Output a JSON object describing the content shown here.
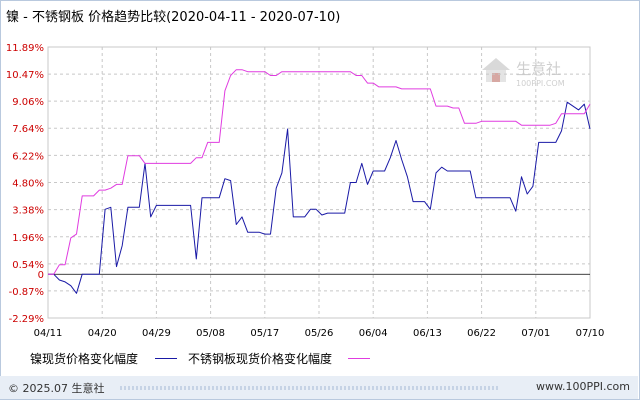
{
  "title": "镍 - 不锈钢板 价格趋势比较(2020-04-11 - 2020-07-10)",
  "watermark": {
    "text": "生意社",
    "url": "100PPI.COM"
  },
  "footer": {
    "left": "© 2025.07 生意社",
    "right": "www.100PPI.com"
  },
  "colors": {
    "nickel": "#1a1aa6",
    "stainless": "#e03ce0",
    "grid": "#c8c8c8",
    "axis": "#000000"
  },
  "chart_data": {
    "type": "line",
    "title": "镍 - 不锈钢板 价格趋势比较(2020-04-11 - 2020-07-10)",
    "xlabel": "",
    "ylabel": "",
    "x_ticks": [
      "04/11",
      "04/20",
      "04/29",
      "05/08",
      "05/17",
      "05/26",
      "06/04",
      "06/13",
      "06/22",
      "07/01",
      "07/10"
    ],
    "y_ticks": [
      "11.89%",
      "10.47%",
      "9.06%",
      "7.64%",
      "6.22%",
      "4.80%",
      "3.38%",
      "1.96%",
      "0.54%",
      "0",
      "-0.87%",
      "-2.29%"
    ],
    "y_tick_values": [
      11.89,
      10.47,
      9.06,
      7.64,
      6.22,
      4.8,
      3.38,
      1.96,
      0.54,
      0,
      -0.87,
      -2.29
    ],
    "ylim": [
      -2.29,
      11.89
    ],
    "grid": true,
    "legend_position": "bottom",
    "series": [
      {
        "name": "镍现货价格变化幅度",
        "color": "#1a1aa6",
        "points": [
          [
            0,
            0
          ],
          [
            1,
            0
          ],
          [
            2,
            -0.3
          ],
          [
            3,
            -0.4
          ],
          [
            4,
            -0.6
          ],
          [
            5,
            -1.0
          ],
          [
            6,
            0
          ],
          [
            7,
            0
          ],
          [
            8,
            0
          ],
          [
            9,
            0
          ],
          [
            10,
            3.4
          ],
          [
            11,
            3.5
          ],
          [
            12,
            0.4
          ],
          [
            13,
            1.5
          ],
          [
            14,
            3.5
          ],
          [
            15,
            3.5
          ],
          [
            16,
            3.5
          ],
          [
            17,
            5.8
          ],
          [
            18,
            3.0
          ],
          [
            19,
            3.6
          ],
          [
            20,
            3.6
          ],
          [
            21,
            3.6
          ],
          [
            22,
            3.6
          ],
          [
            23,
            3.6
          ],
          [
            24,
            3.6
          ],
          [
            25,
            3.6
          ],
          [
            26,
            0.8
          ],
          [
            27,
            4.0
          ],
          [
            28,
            4.0
          ],
          [
            29,
            4.0
          ],
          [
            30,
            4.0
          ],
          [
            31,
            5.0
          ],
          [
            32,
            4.9
          ],
          [
            33,
            2.6
          ],
          [
            34,
            3.0
          ],
          [
            35,
            2.2
          ],
          [
            36,
            2.2
          ],
          [
            37,
            2.2
          ],
          [
            38,
            2.1
          ],
          [
            39,
            2.1
          ],
          [
            40,
            4.5
          ],
          [
            41,
            5.3
          ],
          [
            42,
            7.6
          ],
          [
            43,
            3.0
          ],
          [
            44,
            3.0
          ],
          [
            45,
            3.0
          ],
          [
            46,
            3.4
          ],
          [
            47,
            3.4
          ],
          [
            48,
            3.1
          ],
          [
            49,
            3.2
          ],
          [
            50,
            3.2
          ],
          [
            51,
            3.2
          ],
          [
            52,
            3.2
          ],
          [
            53,
            4.8
          ],
          [
            54,
            4.8
          ],
          [
            55,
            5.8
          ],
          [
            56,
            4.7
          ],
          [
            57,
            5.4
          ],
          [
            58,
            5.4
          ],
          [
            59,
            5.4
          ],
          [
            60,
            6.1
          ],
          [
            61,
            7.0
          ],
          [
            62,
            6.0
          ],
          [
            63,
            5.1
          ],
          [
            64,
            3.8
          ],
          [
            65,
            3.8
          ],
          [
            66,
            3.8
          ],
          [
            67,
            3.4
          ],
          [
            68,
            5.3
          ],
          [
            69,
            5.6
          ],
          [
            70,
            5.4
          ],
          [
            71,
            5.4
          ],
          [
            72,
            5.4
          ],
          [
            73,
            5.4
          ],
          [
            74,
            5.4
          ],
          [
            75,
            4.0
          ],
          [
            76,
            4.0
          ],
          [
            77,
            4.0
          ],
          [
            78,
            4.0
          ],
          [
            79,
            4.0
          ],
          [
            80,
            4.0
          ],
          [
            81,
            4.0
          ],
          [
            82,
            3.3
          ],
          [
            83,
            5.1
          ],
          [
            84,
            4.2
          ],
          [
            85,
            4.6
          ],
          [
            86,
            6.9
          ],
          [
            87,
            6.9
          ],
          [
            88,
            6.9
          ],
          [
            89,
            6.9
          ],
          [
            90,
            7.5
          ],
          [
            91,
            9.0
          ],
          [
            92,
            8.8
          ],
          [
            93,
            8.6
          ],
          [
            94,
            8.9
          ],
          [
            95,
            7.6
          ]
        ]
      },
      {
        "name": "不锈钢板现货价格变化幅度",
        "color": "#e03ce0",
        "points": [
          [
            0,
            0
          ],
          [
            1,
            0
          ],
          [
            2,
            0.5
          ],
          [
            3,
            0.5
          ],
          [
            4,
            1.9
          ],
          [
            5,
            2.1
          ],
          [
            6,
            4.1
          ],
          [
            7,
            4.1
          ],
          [
            8,
            4.1
          ],
          [
            9,
            4.4
          ],
          [
            10,
            4.4
          ],
          [
            11,
            4.5
          ],
          [
            12,
            4.7
          ],
          [
            13,
            4.7
          ],
          [
            14,
            6.2
          ],
          [
            15,
            6.2
          ],
          [
            16,
            6.2
          ],
          [
            17,
            5.8
          ],
          [
            18,
            5.8
          ],
          [
            19,
            5.8
          ],
          [
            20,
            5.8
          ],
          [
            21,
            5.8
          ],
          [
            22,
            5.8
          ],
          [
            23,
            5.8
          ],
          [
            24,
            5.8
          ],
          [
            25,
            5.8
          ],
          [
            26,
            6.1
          ],
          [
            27,
            6.1
          ],
          [
            28,
            6.9
          ],
          [
            29,
            6.9
          ],
          [
            30,
            6.9
          ],
          [
            31,
            9.6
          ],
          [
            32,
            10.4
          ],
          [
            33,
            10.7
          ],
          [
            34,
            10.7
          ],
          [
            35,
            10.6
          ],
          [
            36,
            10.6
          ],
          [
            37,
            10.6
          ],
          [
            38,
            10.6
          ],
          [
            39,
            10.4
          ],
          [
            40,
            10.4
          ],
          [
            41,
            10.6
          ],
          [
            42,
            10.6
          ],
          [
            43,
            10.6
          ],
          [
            44,
            10.6
          ],
          [
            45,
            10.6
          ],
          [
            46,
            10.6
          ],
          [
            47,
            10.6
          ],
          [
            48,
            10.6
          ],
          [
            49,
            10.6
          ],
          [
            50,
            10.6
          ],
          [
            51,
            10.6
          ],
          [
            52,
            10.6
          ],
          [
            53,
            10.6
          ],
          [
            54,
            10.4
          ],
          [
            55,
            10.4
          ],
          [
            56,
            10.0
          ],
          [
            57,
            10.0
          ],
          [
            58,
            9.8
          ],
          [
            59,
            9.8
          ],
          [
            60,
            9.8
          ],
          [
            61,
            9.8
          ],
          [
            62,
            9.7
          ],
          [
            63,
            9.7
          ],
          [
            64,
            9.7
          ],
          [
            65,
            9.7
          ],
          [
            66,
            9.7
          ],
          [
            67,
            9.7
          ],
          [
            68,
            8.8
          ],
          [
            69,
            8.8
          ],
          [
            70,
            8.8
          ],
          [
            71,
            8.7
          ],
          [
            72,
            8.7
          ],
          [
            73,
            7.9
          ],
          [
            74,
            7.9
          ],
          [
            75,
            7.9
          ],
          [
            76,
            8.0
          ],
          [
            77,
            8.0
          ],
          [
            78,
            8.0
          ],
          [
            79,
            8.0
          ],
          [
            80,
            8.0
          ],
          [
            81,
            8.0
          ],
          [
            82,
            8.0
          ],
          [
            83,
            7.8
          ],
          [
            84,
            7.8
          ],
          [
            85,
            7.8
          ],
          [
            86,
            7.8
          ],
          [
            87,
            7.8
          ],
          [
            88,
            7.8
          ],
          [
            89,
            7.9
          ],
          [
            90,
            8.4
          ],
          [
            91,
            8.4
          ],
          [
            92,
            8.4
          ],
          [
            93,
            8.4
          ],
          [
            94,
            8.4
          ],
          [
            95,
            8.9
          ]
        ]
      }
    ]
  }
}
